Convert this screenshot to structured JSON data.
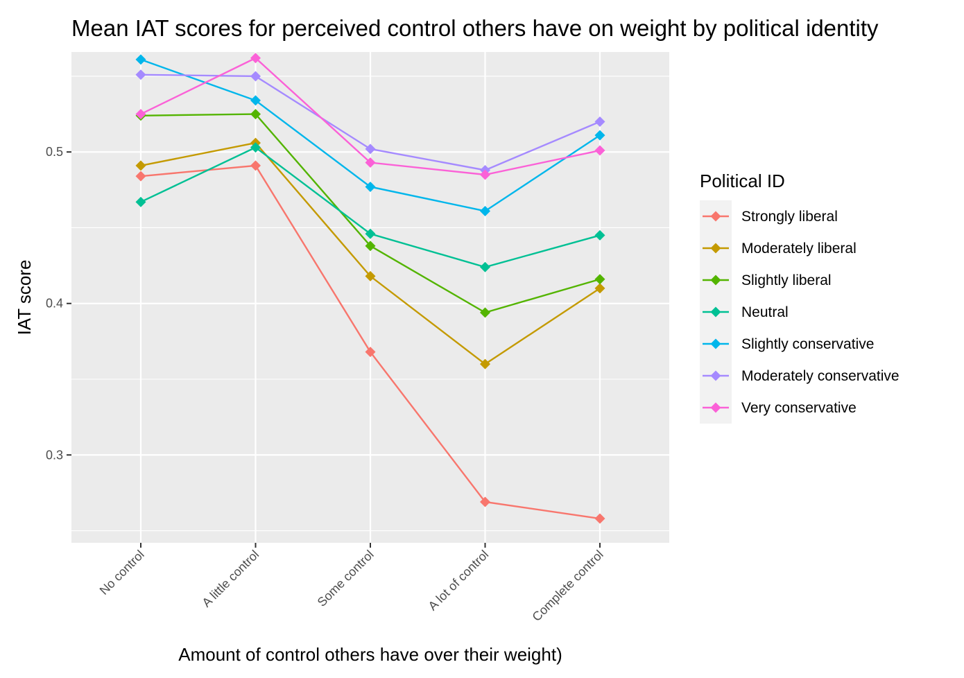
{
  "chart_data": {
    "type": "line",
    "title": "Mean IAT scores for perceived control others have on weight by political identity",
    "xlabel": "Amount of control others have over their weight)",
    "ylabel": "IAT score",
    "categories": [
      "No control",
      "A little control",
      "Some control",
      "A lot of control",
      "Complete control"
    ],
    "ylim": [
      0.242,
      0.566
    ],
    "yticks": [
      0.3,
      0.4,
      0.5
    ],
    "ytick_labels": [
      "0.3",
      "0.4",
      "0.5"
    ],
    "grid": true,
    "marker": "diamond",
    "legend": {
      "title": "Political ID",
      "placement": "right"
    },
    "series": [
      {
        "name": "Strongly liberal",
        "color": "#F8766D",
        "values": [
          0.484,
          0.491,
          0.368,
          0.269,
          0.258
        ]
      },
      {
        "name": "Moderately liberal",
        "color": "#C49A00",
        "values": [
          0.491,
          0.506,
          0.418,
          0.36,
          0.41
        ]
      },
      {
        "name": "Slightly liberal",
        "color": "#53B400",
        "values": [
          0.524,
          0.525,
          0.438,
          0.394,
          0.416
        ]
      },
      {
        "name": "Neutral",
        "color": "#00C094",
        "values": [
          0.467,
          0.503,
          0.446,
          0.424,
          0.445
        ]
      },
      {
        "name": "Slightly conservative",
        "color": "#00B6EB",
        "values": [
          0.561,
          0.534,
          0.477,
          0.461,
          0.511
        ]
      },
      {
        "name": "Moderately conservative",
        "color": "#A58AFF",
        "values": [
          0.551,
          0.55,
          0.502,
          0.488,
          0.52
        ]
      },
      {
        "name": "Very conservative",
        "color": "#FB61D7",
        "values": [
          0.525,
          0.562,
          0.493,
          0.485,
          0.501
        ]
      }
    ]
  }
}
